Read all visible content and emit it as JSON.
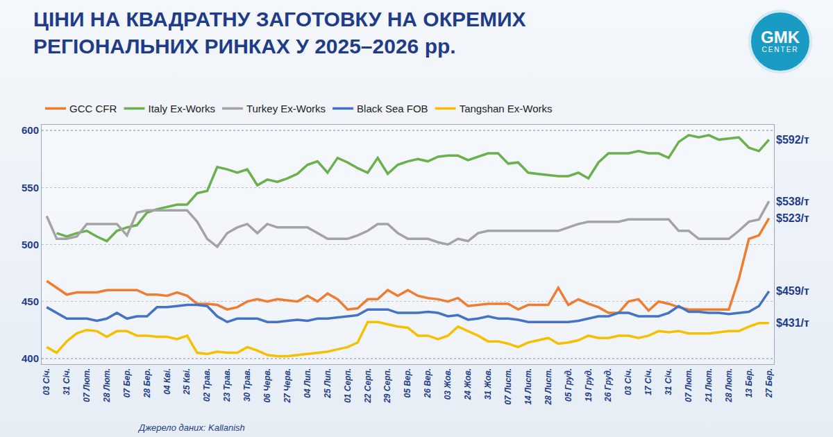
{
  "chart_data": {
    "type": "line",
    "title": "ЦІНИ НА КВАДРАТНУ ЗАГОТОВКУ НА ОКРЕМИХ РЕГІОНАЛЬНИХ РИНКАХ У 2025–2026 рр.",
    "source": "Джерело даних: Kallanish",
    "brand": "GMK",
    "brand_sub": "CENTER",
    "categories": [
      "03 Січ.",
      null,
      "31 Січ.",
      null,
      "07 Лют.",
      null,
      "28 Лют.",
      null,
      "07 Бер.",
      null,
      "28 Бер.",
      null,
      "04 Кві.",
      null,
      "25 Кві.",
      null,
      "02 Трав.",
      null,
      "23 Трав.",
      null,
      "30 Трав.",
      null,
      "06 Черв.",
      null,
      "27 Черв.",
      null,
      "04 Лип.",
      null,
      "25 Лип.",
      null,
      "01 Серп.",
      null,
      "22 Серп.",
      null,
      "29 Серп.",
      null,
      "05 Вер.",
      null,
      "26 Вер.",
      null,
      "03 Жов.",
      null,
      "24 Жов.",
      null,
      "31 Жов.",
      null,
      "07 Лист.",
      null,
      "14 Лист.",
      null,
      "28 Лист.",
      null,
      "05 Груд.",
      null,
      "19 Груд.",
      null,
      "26 Груд.",
      null,
      "03 Січ.",
      null,
      "17 Січ.",
      null,
      "31 Січ.",
      null,
      "07 Лют.",
      null,
      "21 Лют.",
      null,
      "28 Лют.",
      null,
      "13 Бер.",
      null,
      "27 Бер."
    ],
    "series": [
      {
        "name": "GCC CFR",
        "color": "#ef7d2f",
        "end_label": "$523/т",
        "values": [
          468,
          462,
          456,
          458,
          458,
          458,
          460,
          460,
          460,
          460,
          456,
          456,
          455,
          458,
          455,
          448,
          448,
          447,
          443,
          445,
          450,
          452,
          450,
          452,
          451,
          450,
          455,
          450,
          457,
          452,
          443,
          444,
          452,
          452,
          460,
          455,
          460,
          455,
          453,
          452,
          450,
          453,
          446,
          447,
          448,
          448,
          448,
          443,
          447,
          447,
          447,
          462,
          447,
          452,
          448,
          445,
          440,
          440,
          450,
          452,
          442,
          450,
          448,
          445,
          443,
          443,
          443,
          443,
          443,
          470,
          505,
          508,
          523
        ]
      },
      {
        "name": "Italy Ex-Works",
        "color": "#6ab04c",
        "end_label": "$592/т",
        "values": [
          null,
          510,
          507,
          510,
          512,
          507,
          503,
          512,
          515,
          517,
          528,
          531,
          533,
          535,
          535,
          545,
          547,
          568,
          566,
          563,
          566,
          552,
          557,
          555,
          558,
          562,
          570,
          573,
          563,
          576,
          572,
          567,
          563,
          576,
          562,
          570,
          573,
          575,
          573,
          577,
          578,
          578,
          574,
          577,
          580,
          580,
          571,
          572,
          563,
          562,
          561,
          560,
          560,
          563,
          558,
          572,
          580,
          580,
          580,
          582,
          580,
          580,
          576,
          590,
          596,
          594,
          596,
          592,
          593,
          594,
          585,
          582,
          592
        ]
      },
      {
        "name": "Turkey Ex-Works",
        "color": "#a3a3a3",
        "end_label": "$538/т",
        "values": [
          525,
          505,
          505,
          507,
          518,
          518,
          518,
          518,
          508,
          528,
          530,
          530,
          530,
          530,
          530,
          520,
          505,
          498,
          510,
          515,
          518,
          510,
          518,
          515,
          515,
          515,
          515,
          510,
          505,
          505,
          505,
          508,
          512,
          518,
          518,
          510,
          505,
          505,
          505,
          502,
          500,
          505,
          503,
          510,
          512,
          512,
          512,
          512,
          512,
          512,
          512,
          512,
          515,
          518,
          520,
          520,
          520,
          520,
          522,
          522,
          522,
          522,
          522,
          512,
          512,
          505,
          505,
          505,
          505,
          512,
          520,
          522,
          538
        ]
      },
      {
        "name": "Black Sea FOB",
        "color": "#4472c4",
        "end_label": "$459/т",
        "values": [
          445,
          440,
          435,
          435,
          435,
          433,
          435,
          440,
          435,
          437,
          437,
          445,
          445,
          446,
          447,
          447,
          446,
          437,
          432,
          435,
          435,
          435,
          432,
          432,
          433,
          434,
          433,
          435,
          435,
          436,
          437,
          438,
          443,
          443,
          443,
          440,
          440,
          440,
          441,
          440,
          437,
          438,
          434,
          435,
          437,
          435,
          435,
          434,
          432,
          432,
          432,
          432,
          432,
          433,
          435,
          437,
          437,
          440,
          440,
          437,
          437,
          437,
          440,
          446,
          441,
          441,
          440,
          440,
          439,
          440,
          441,
          446,
          459
        ]
      },
      {
        "name": "Tangshan Ex-Works",
        "color": "#f5c000",
        "end_label": "$431/т",
        "values": [
          410,
          405,
          415,
          422,
          425,
          424,
          419,
          424,
          424,
          420,
          420,
          419,
          419,
          417,
          420,
          405,
          404,
          406,
          405,
          405,
          410,
          407,
          403,
          402,
          402,
          403,
          404,
          405,
          406,
          408,
          410,
          414,
          432,
          432,
          430,
          428,
          427,
          420,
          420,
          417,
          420,
          428,
          424,
          420,
          415,
          415,
          413,
          410,
          414,
          416,
          418,
          413,
          414,
          416,
          420,
          418,
          418,
          420,
          420,
          418,
          420,
          424,
          423,
          424,
          422,
          422,
          422,
          423,
          424,
          424,
          428,
          431,
          431
        ]
      }
    ],
    "ylim": [
      395,
      605
    ],
    "yticks": [
      400,
      450,
      500,
      550,
      600
    ],
    "grid": true,
    "legend": "top"
  }
}
